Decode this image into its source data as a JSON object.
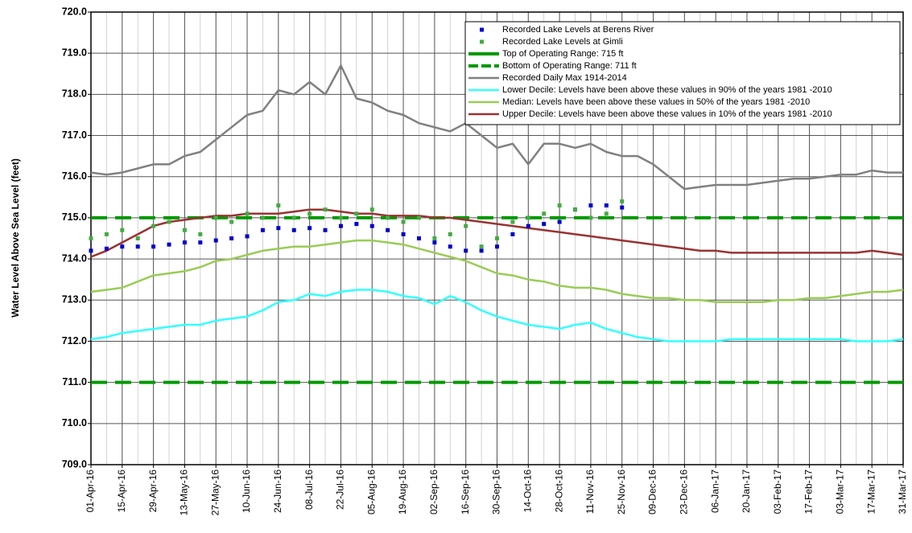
{
  "chart_data": {
    "type": "line",
    "y_label": "Water Level Above Sea Level (feet)",
    "x": [
      "01-Apr-16",
      "08-Apr-16",
      "15-Apr-16",
      "22-Apr-16",
      "29-Apr-16",
      "06-May-16",
      "13-May-16",
      "20-May-16",
      "27-May-16",
      "03-Jun-16",
      "10-Jun-16",
      "17-Jun-16",
      "24-Jun-16",
      "01-Jul-16",
      "08-Jul-16",
      "15-Jul-16",
      "22-Jul-16",
      "29-Jul-16",
      "05-Aug-16",
      "12-Aug-16",
      "19-Aug-16",
      "26-Aug-16",
      "02-Sep-16",
      "09-Sep-16",
      "16-Sep-16",
      "23-Sep-16",
      "30-Sep-16",
      "07-Oct-16",
      "14-Oct-16",
      "21-Oct-16",
      "28-Oct-16",
      "04-Nov-16",
      "11-Nov-16",
      "18-Nov-16",
      "25-Nov-16",
      "02-Dec-16",
      "09-Dec-16",
      "16-Dec-16",
      "23-Dec-16",
      "30-Dec-16",
      "06-Jan-17",
      "13-Jan-17",
      "20-Jan-17",
      "27-Jan-17",
      "03-Feb-17",
      "10-Feb-17",
      "17-Feb-17",
      "24-Feb-17",
      "03-Mar-17",
      "10-Mar-17",
      "17-Mar-17",
      "24-Mar-17",
      "31-Mar-17"
    ],
    "xlim": [
      "01-Apr-16",
      "31-Mar-17"
    ],
    "xticks": [
      "01-Apr-16",
      "15-Apr-16",
      "29-Apr-16",
      "13-May-16",
      "27-May-16",
      "10-Jun-16",
      "24-Jun-16",
      "08-Jul-16",
      "22-Jul-16",
      "05-Aug-16",
      "19-Aug-16",
      "02-Sep-16",
      "16-Sep-16",
      "30-Sep-16",
      "14-Oct-16",
      "28-Oct-16",
      "11-Nov-16",
      "25-Nov-16",
      "09-Dec-16",
      "23-Dec-16",
      "06-Jan-17",
      "20-Jan-17",
      "03-Feb-17",
      "17-Feb-17",
      "03-Mar-17",
      "17-Mar-17",
      "31-Mar-17"
    ],
    "ylim": [
      709,
      720
    ],
    "yticks": [
      {
        "value": 709,
        "label": "709.0"
      },
      {
        "value": 710,
        "label": "710.0"
      },
      {
        "value": 711,
        "label": "711.0"
      },
      {
        "value": 712,
        "label": "712.0"
      },
      {
        "value": 713,
        "label": "713.0"
      },
      {
        "value": 714,
        "label": "714.0"
      },
      {
        "value": 715,
        "label": "715.0"
      },
      {
        "value": 716,
        "label": "716.0"
      },
      {
        "value": 717,
        "label": "717.0"
      },
      {
        "value": 718,
        "label": "718.0"
      },
      {
        "value": 719,
        "label": "719.0"
      },
      {
        "value": 720,
        "label": "720.0"
      }
    ],
    "grid": true,
    "legend": "upper right",
    "series": [
      {
        "name": "Recorded Lake Levels at Berens River",
        "style": "markers",
        "color": "#0000cc",
        "values": [
          714.2,
          714.25,
          714.3,
          714.3,
          714.3,
          714.35,
          714.4,
          714.4,
          714.45,
          714.5,
          714.55,
          714.7,
          714.75,
          714.7,
          714.75,
          714.7,
          714.8,
          714.85,
          714.8,
          714.7,
          714.6,
          714.5,
          714.4,
          714.3,
          714.2,
          714.2,
          714.3,
          714.6,
          714.8,
          714.85,
          714.9,
          715.2,
          715.3,
          715.3,
          715.25,
          null,
          null,
          null,
          null,
          null,
          null,
          null,
          null,
          null,
          null,
          null,
          null,
          null,
          null,
          null,
          null,
          null,
          null
        ]
      },
      {
        "name": "Recorded Lake Levels at Gimli",
        "style": "markers",
        "color": "#44aa44",
        "values": [
          714.5,
          714.6,
          714.7,
          714.5,
          714.8,
          714.9,
          714.7,
          714.6,
          715.0,
          714.9,
          715.1,
          715.0,
          715.3,
          715.0,
          715.1,
          715.2,
          715.0,
          715.1,
          715.2,
          715.0,
          714.9,
          715.0,
          714.5,
          714.6,
          714.8,
          714.3,
          714.5,
          714.9,
          715.0,
          715.1,
          715.3,
          715.2,
          715.0,
          715.1,
          715.4,
          null,
          null,
          null,
          null,
          null,
          null,
          null,
          null,
          null,
          null,
          null,
          null,
          null,
          null,
          null,
          null,
          null,
          null
        ]
      },
      {
        "name": "Top of Operating Range: 715 ft",
        "style": "hline",
        "color": "#009900",
        "value": 715
      },
      {
        "name": "Bottom of Operating Range: 711 ft",
        "style": "hline",
        "color": "#009900",
        "value": 711
      },
      {
        "name": "Recorded Daily Max 1914-2014",
        "style": "line",
        "color": "#808080",
        "values": [
          716.1,
          716.05,
          716.1,
          716.2,
          716.3,
          716.3,
          716.5,
          716.6,
          716.9,
          717.2,
          717.5,
          717.6,
          718.1,
          718.0,
          718.3,
          718.0,
          718.7,
          717.9,
          717.8,
          717.6,
          717.5,
          717.3,
          717.2,
          717.1,
          717.3,
          717.0,
          716.7,
          716.8,
          716.3,
          716.8,
          716.8,
          716.7,
          716.8,
          716.6,
          716.5,
          716.5,
          716.3,
          716.0,
          715.7,
          715.75,
          715.8,
          715.8,
          715.8,
          715.85,
          715.9,
          715.95,
          715.95,
          716.0,
          716.05,
          716.05,
          716.15,
          716.1,
          716.1
        ]
      },
      {
        "name": "Lower Decile: Levels have been above these values in 90% of the years 1981 -2010",
        "style": "line",
        "color": "#33ffff",
        "values": [
          712.05,
          712.1,
          712.2,
          712.25,
          712.3,
          712.35,
          712.4,
          712.4,
          712.5,
          712.55,
          712.6,
          712.75,
          712.95,
          713.0,
          713.15,
          713.1,
          713.2,
          713.25,
          713.25,
          713.2,
          713.1,
          713.05,
          712.9,
          713.1,
          712.95,
          712.75,
          712.6,
          712.5,
          712.4,
          712.35,
          712.3,
          712.4,
          712.45,
          712.3,
          712.2,
          712.1,
          712.05,
          712.0,
          712.0,
          712.0,
          712.0,
          712.05,
          712.05,
          712.05,
          712.05,
          712.05,
          712.05,
          712.05,
          712.05,
          712.0,
          712.0,
          712.0,
          712.05
        ]
      },
      {
        "name": "Median: Levels have been above these values in 50% of the years 1981 -2010",
        "style": "line",
        "color": "#99cc55",
        "values": [
          713.2,
          713.25,
          713.3,
          713.45,
          713.6,
          713.65,
          713.7,
          713.8,
          713.95,
          714.0,
          714.1,
          714.2,
          714.25,
          714.3,
          714.3,
          714.35,
          714.4,
          714.45,
          714.45,
          714.4,
          714.35,
          714.25,
          714.15,
          714.05,
          713.95,
          713.8,
          713.65,
          713.6,
          713.5,
          713.45,
          713.35,
          713.3,
          713.3,
          713.25,
          713.15,
          713.1,
          713.05,
          713.05,
          713.0,
          713.0,
          712.95,
          712.95,
          712.95,
          712.95,
          713.0,
          713.0,
          713.05,
          713.05,
          713.1,
          713.15,
          713.2,
          713.2,
          713.25
        ]
      },
      {
        "name": "Upper Decile: Levels have been above these values in 10% of the years 1981 -2010",
        "style": "line",
        "color": "#993333",
        "values": [
          714.05,
          714.2,
          714.4,
          714.6,
          714.8,
          714.9,
          714.95,
          715.0,
          715.05,
          715.05,
          715.1,
          715.1,
          715.1,
          715.15,
          715.2,
          715.2,
          715.15,
          715.1,
          715.1,
          715.05,
          715.05,
          715.05,
          715.0,
          715.0,
          714.95,
          714.9,
          714.85,
          714.8,
          714.75,
          714.7,
          714.65,
          714.6,
          714.55,
          714.5,
          714.45,
          714.4,
          714.35,
          714.3,
          714.25,
          714.2,
          714.2,
          714.15,
          714.15,
          714.15,
          714.15,
          714.15,
          714.15,
          714.15,
          714.15,
          714.15,
          714.2,
          714.15,
          714.1
        ]
      }
    ]
  }
}
